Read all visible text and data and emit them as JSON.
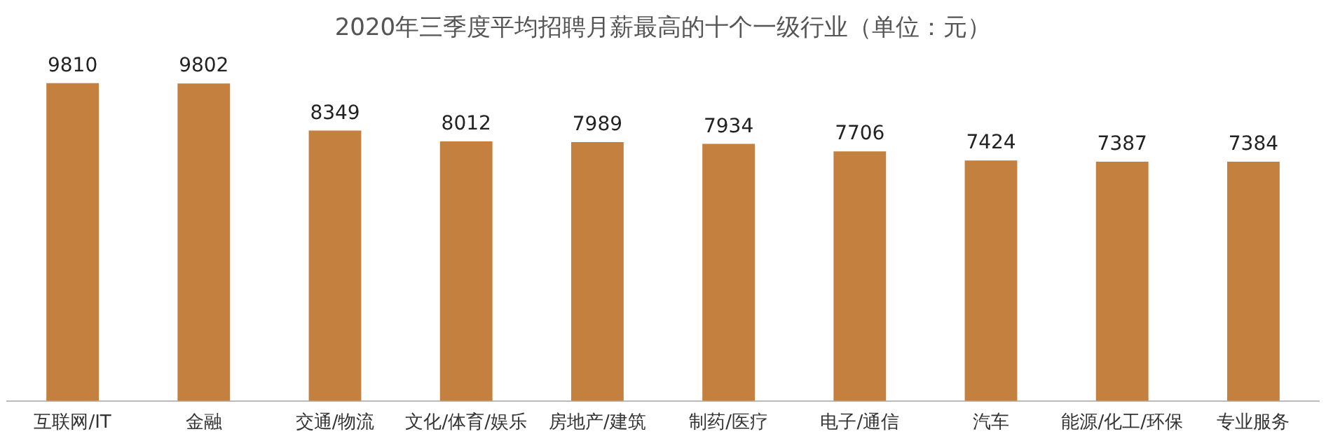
{
  "chart_data": {
    "type": "bar",
    "title": "2020年三季度平均招聘月薪最高的十个一级行业（单位：元）",
    "categories": [
      "互联网/IT",
      "金融",
      "交通/物流",
      "文化/体育/娱乐",
      "房地产/建筑",
      "制药/医疗",
      "电子/通信",
      "汽车",
      "能源/化工/环保",
      "专业服务"
    ],
    "values": [
      9810,
      9802,
      8349,
      8012,
      7989,
      7934,
      7706,
      7424,
      7387,
      7384
    ],
    "color": "#c4803f",
    "data_labels": true,
    "grid": false,
    "legend": false
  }
}
